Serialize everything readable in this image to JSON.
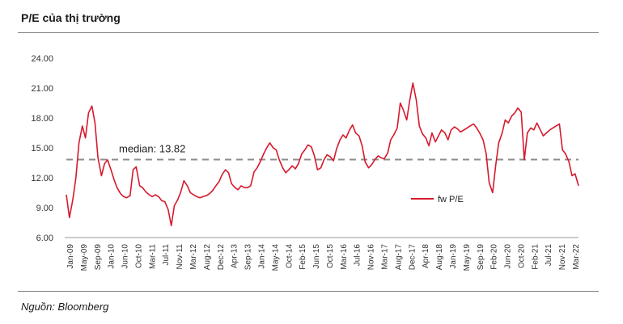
{
  "title": "P/E của thị trường",
  "source": "Nguồn: Bloomberg",
  "chart_data": {
    "type": "line",
    "title": "P/E của thị trường",
    "xlabel": "",
    "ylabel": "",
    "ylim": [
      6,
      24
    ],
    "yticks": [
      "6.00",
      "9.00",
      "12.00",
      "15.00",
      "18.00",
      "21.00",
      "24.00"
    ],
    "xticks": [
      "Jan-09",
      "May-09",
      "Sep-09",
      "Jan-10",
      "Jun-10",
      "Oct-10",
      "Mar-11",
      "Jul-11",
      "Nov-11",
      "Mar-12",
      "Aug-12",
      "Dec-12",
      "Apr-13",
      "Sep-13",
      "Jan-14",
      "May-14",
      "Oct-14",
      "Feb-15",
      "Jun-15",
      "Oct-15",
      "Mar-16",
      "Jul-16",
      "Nov-16",
      "Mar-17",
      "Aug-17",
      "Dec-17",
      "Apr-18",
      "Aug-18",
      "Jan-19",
      "May-19",
      "Sep-19",
      "Feb-20",
      "Jun-20",
      "Oct-20",
      "Feb-21",
      "Jul-21",
      "Nov-21",
      "Mar-22"
    ],
    "median": 13.82,
    "median_label": "median: 13.82",
    "legend": "fw P/E",
    "legend_position": "center-right",
    "series": [
      {
        "name": "fw P/E",
        "color": "#d7192d",
        "x": [
          2009.0,
          2009.08,
          2009.17,
          2009.25,
          2009.33,
          2009.42,
          2009.5,
          2009.58,
          2009.67,
          2009.75,
          2009.83,
          2009.92,
          2010.0,
          2010.08,
          2010.17,
          2010.25,
          2010.33,
          2010.42,
          2010.5,
          2010.58,
          2010.67,
          2010.75,
          2010.83,
          2010.92,
          2011.0,
          2011.08,
          2011.17,
          2011.25,
          2011.33,
          2011.42,
          2011.5,
          2011.58,
          2011.67,
          2011.75,
          2011.83,
          2011.92,
          2012.0,
          2012.08,
          2012.17,
          2012.25,
          2012.33,
          2012.42,
          2012.5,
          2012.58,
          2012.67,
          2012.75,
          2012.83,
          2012.92,
          2013.0,
          2013.08,
          2013.17,
          2013.25,
          2013.33,
          2013.42,
          2013.5,
          2013.58,
          2013.67,
          2013.75,
          2013.83,
          2013.92,
          2014.0,
          2014.08,
          2014.17,
          2014.25,
          2014.33,
          2014.42,
          2014.5,
          2014.58,
          2014.67,
          2014.75,
          2014.83,
          2014.92,
          2015.0,
          2015.08,
          2015.17,
          2015.25,
          2015.33,
          2015.42,
          2015.5,
          2015.58,
          2015.67,
          2015.75,
          2015.83,
          2015.92,
          2016.0,
          2016.08,
          2016.17,
          2016.25,
          2016.33,
          2016.42,
          2016.5,
          2016.58,
          2016.67,
          2016.75,
          2016.83,
          2016.92,
          2017.0,
          2017.08,
          2017.17,
          2017.25,
          2017.33,
          2017.42,
          2017.5,
          2017.58,
          2017.67,
          2017.75,
          2017.83,
          2017.92,
          2018.0,
          2018.08,
          2018.17,
          2018.25,
          2018.33,
          2018.42,
          2018.5,
          2018.58,
          2018.67,
          2018.75,
          2018.83,
          2018.92,
          2019.0,
          2019.08,
          2019.17,
          2019.25,
          2019.33,
          2019.42,
          2019.5,
          2019.58,
          2019.67,
          2019.75,
          2019.83,
          2019.92,
          2020.0,
          2020.08,
          2020.17,
          2020.25,
          2020.33,
          2020.42,
          2020.5,
          2020.58,
          2020.67,
          2020.75,
          2020.83,
          2020.92,
          2021.0,
          2021.08,
          2021.17,
          2021.25,
          2021.33,
          2021.42,
          2021.5,
          2021.58,
          2021.67,
          2021.75,
          2021.83,
          2021.92,
          2022.0,
          2022.08,
          2022.17,
          2022.25,
          2022.33,
          2022.42
        ],
        "y": [
          10.3,
          8.0,
          9.8,
          12.0,
          15.5,
          17.2,
          16.0,
          18.5,
          19.2,
          17.5,
          14.0,
          12.2,
          13.4,
          13.8,
          12.8,
          11.8,
          11.0,
          10.4,
          10.1,
          10.0,
          10.2,
          12.8,
          13.1,
          11.2,
          11.0,
          10.6,
          10.3,
          10.1,
          10.3,
          10.1,
          9.7,
          9.6,
          8.8,
          7.2,
          9.2,
          9.8,
          10.6,
          11.7,
          11.2,
          10.5,
          10.3,
          10.1,
          10.0,
          10.1,
          10.2,
          10.4,
          10.7,
          11.2,
          11.6,
          12.3,
          12.8,
          12.5,
          11.4,
          11.0,
          10.8,
          11.2,
          11.0,
          11.0,
          11.2,
          12.6,
          13.0,
          13.6,
          14.4,
          15.0,
          15.5,
          15.0,
          14.8,
          13.8,
          13.0,
          12.5,
          12.8,
          13.2,
          12.9,
          13.4,
          14.4,
          14.8,
          15.3,
          15.1,
          14.2,
          12.8,
          13.0,
          13.8,
          14.3,
          14.1,
          13.7,
          14.9,
          15.8,
          16.3,
          16.0,
          16.8,
          17.3,
          16.5,
          16.2,
          15.2,
          13.6,
          13.0,
          13.3,
          13.8,
          14.2,
          14.0,
          13.9,
          14.5,
          15.8,
          16.3,
          17.0,
          19.5,
          18.8,
          17.8,
          19.8,
          21.5,
          19.8,
          17.2,
          16.4,
          16.0,
          15.2,
          16.5,
          15.6,
          16.2,
          16.8,
          16.5,
          15.8,
          16.8,
          17.1,
          16.9,
          16.6,
          16.8,
          17.0,
          17.2,
          17.4,
          17.0,
          16.5,
          15.8,
          14.4,
          11.5,
          10.5,
          13.2,
          15.5,
          16.5,
          17.8,
          17.5,
          18.2,
          18.5,
          19.0,
          18.6,
          13.8,
          16.5,
          17.0,
          16.8,
          17.5,
          16.8,
          16.2,
          16.5,
          16.8,
          17.0,
          17.2,
          17.4,
          14.8,
          14.4,
          13.6,
          12.2,
          12.4,
          11.2
        ]
      }
    ]
  }
}
